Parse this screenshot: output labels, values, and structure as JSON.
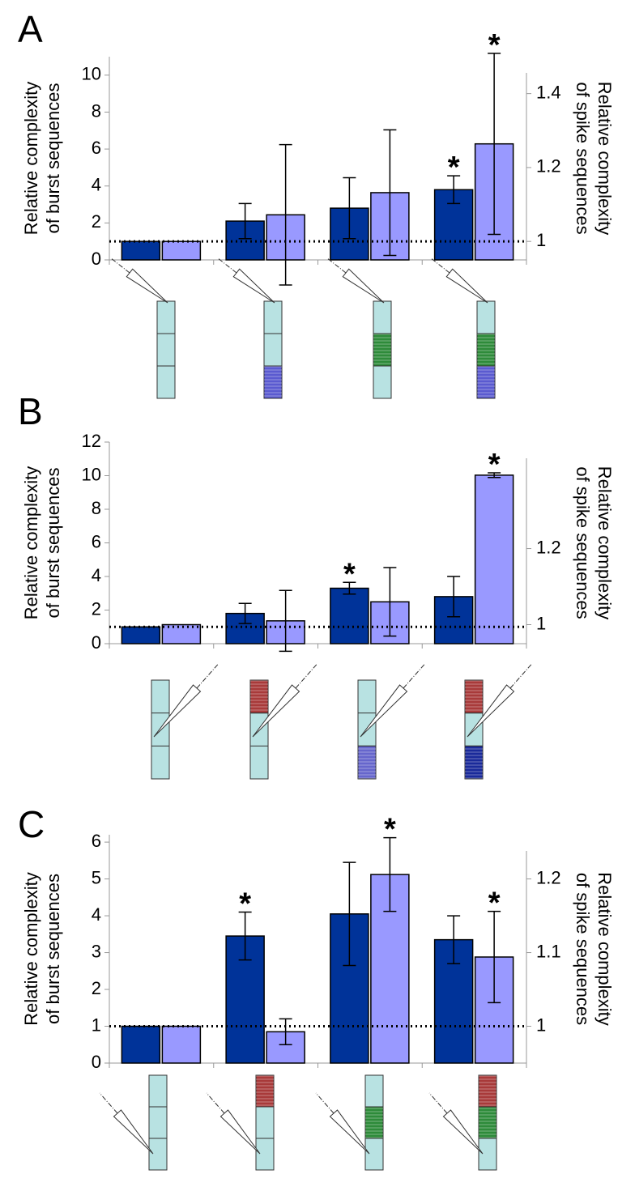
{
  "chart_data": [
    {
      "type": "bar",
      "label": "A",
      "ylabel": [
        "Relative complexity",
        "of burst sequences"
      ],
      "y2label": [
        "Relative complexity",
        "of spike sequences"
      ],
      "categories": [
        null,
        null,
        null,
        null
      ],
      "ylim": [
        0,
        11
      ],
      "yticks": [
        0,
        2,
        4,
        6,
        8,
        10
      ],
      "y2lim": [
        0.95,
        1.5
      ],
      "y2ticks": [
        1,
        1.2,
        1.4
      ],
      "reference_line": 1,
      "significance_marker": "*",
      "series": [
        {
          "color": "#003399",
          "values": [
            1,
            2.1,
            2.8,
            3.8
          ],
          "errors": [
            null,
            0.95,
            1.65,
            0.75
          ],
          "significant": [
            false,
            false,
            false,
            true
          ]
        },
        {
          "color": "#9999ff",
          "axis": "y2",
          "values": [
            1.0,
            1.072,
            1.132,
            1.264
          ],
          "errors": [
            null,
            0.19,
            0.17,
            0.245
          ],
          "significant": [
            false,
            false,
            false,
            true
          ]
        }
      ]
    },
    {
      "type": "bar",
      "label": "B",
      "ylabel": [
        "Relative complexity",
        "of burst sequences"
      ],
      "y2label": [
        "Relative complexity",
        "of spike sequences"
      ],
      "categories": [
        null,
        null,
        null,
        null
      ],
      "ylim": [
        0,
        12
      ],
      "yticks": [
        0,
        2,
        4,
        6,
        8,
        10,
        12
      ],
      "y2lim": [
        0.95,
        1.48
      ],
      "y2ticks": [
        1,
        1.2
      ],
      "reference_line": 1,
      "significance_marker": "*",
      "series": [
        {
          "color": "#003399",
          "values": [
            1,
            1.8,
            3.3,
            2.8
          ],
          "errors": [
            null,
            0.6,
            0.35,
            1.2
          ],
          "significant": [
            false,
            false,
            true,
            false
          ]
        },
        {
          "color": "#9999ff",
          "axis": "y2",
          "values": [
            1.0,
            1.01,
            1.06,
            1.393
          ],
          "errors": [
            null,
            0.08,
            0.09,
            0.006
          ],
          "significant": [
            false,
            false,
            false,
            true
          ]
        }
      ]
    },
    {
      "type": "bar",
      "label": "C",
      "ylabel": [
        "Relative complexity",
        "of burst sequences"
      ],
      "y2label": [
        "Relative complexity",
        "of spike sequences"
      ],
      "categories": [
        null,
        null,
        null,
        null
      ],
      "ylim": [
        0,
        6.2
      ],
      "yticks": [
        0,
        1,
        2,
        3,
        4,
        5,
        6
      ],
      "y2lim": [
        0.95,
        1.26
      ],
      "y2ticks": [
        1,
        1.1,
        1.2
      ],
      "reference_line": 1,
      "significance_marker": "*",
      "series": [
        {
          "color": "#003399",
          "values": [
            1,
            3.45,
            4.05,
            3.35
          ],
          "errors": [
            null,
            0.65,
            1.4,
            0.65
          ],
          "significant": [
            false,
            true,
            false,
            false
          ]
        },
        {
          "color": "#9999ff",
          "axis": "y2",
          "values": [
            1.0,
            0.9925,
            1.206,
            1.094
          ],
          "errors": [
            null,
            0.0175,
            0.05,
            0.062
          ],
          "significant": [
            false,
            false,
            true,
            true
          ]
        }
      ]
    }
  ]
}
